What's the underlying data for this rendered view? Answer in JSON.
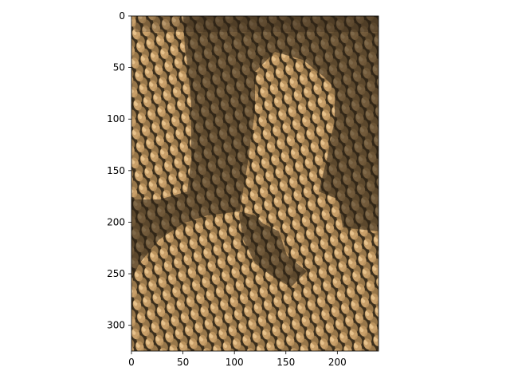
{
  "chart_data": {
    "type": "heatmap",
    "title": "",
    "xlabel": "",
    "ylabel": "",
    "xlim": [
      0,
      240
    ],
    "ylim": [
      325,
      0
    ],
    "y_inverted": true,
    "grid": false,
    "legend": "none",
    "image_content": "woven basket / snake-scale texture with a darker silhouette",
    "xticks": [
      0,
      50,
      100,
      150,
      200
    ],
    "yticks": [
      0,
      50,
      100,
      150,
      200,
      250,
      300
    ],
    "colors": {
      "light": "#e8c08a",
      "mid": "#9c7a4a",
      "dark": "#4a3a22",
      "shadow": "#3a2e1c"
    }
  }
}
